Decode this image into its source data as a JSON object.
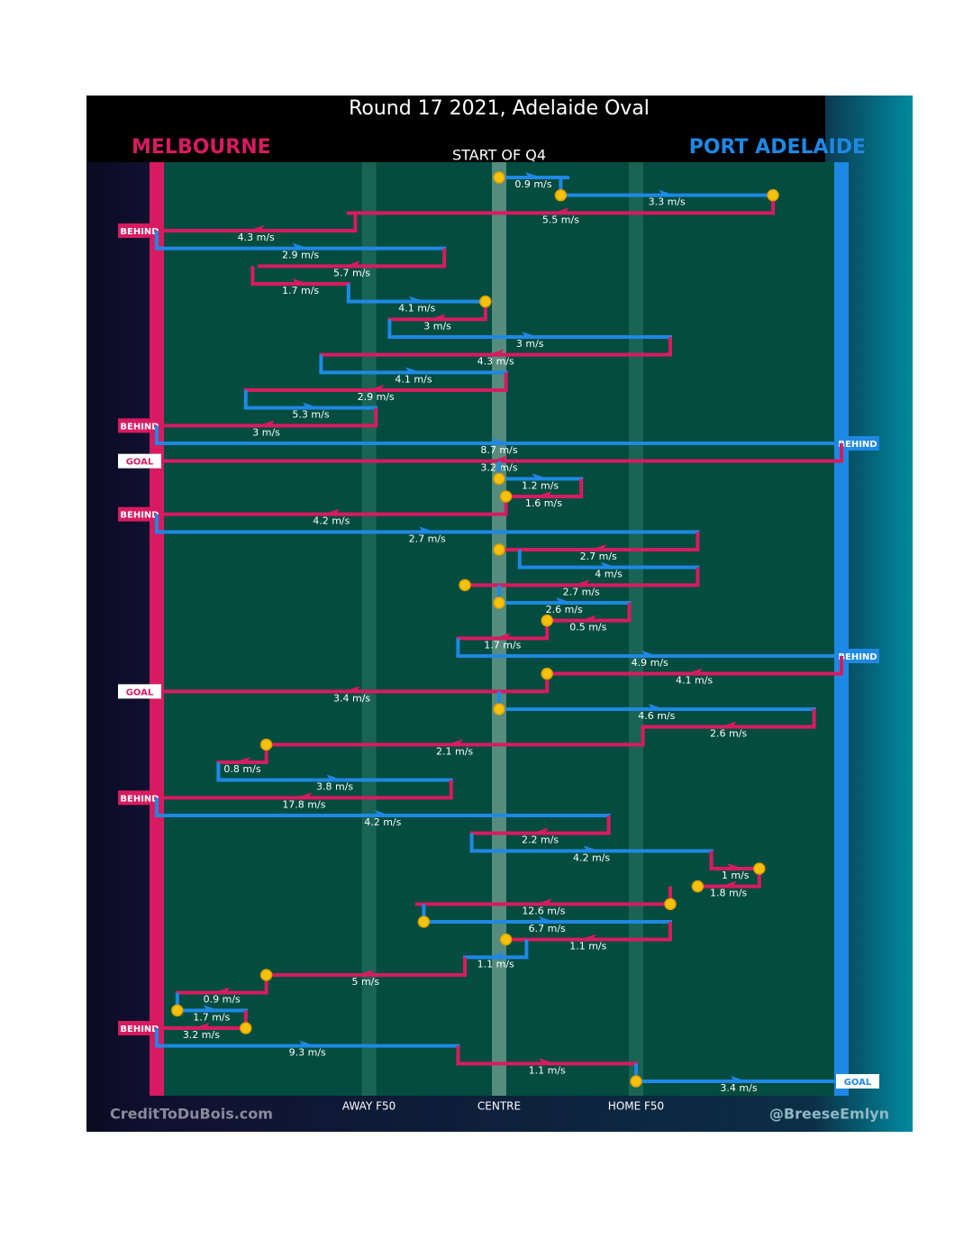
{
  "chart_data": {
    "type": "possession-flow",
    "title": "Round 17 2021, Adelaide Oval",
    "subtitle": "START OF Q4",
    "credit_left": "CreditToDuBois.com",
    "credit_right": "@BreeseEmlyn",
    "series": [
      {
        "name": "MELBOURNE",
        "color": "#d81b60"
      },
      {
        "name": "PORT ADELAIDE",
        "color": "#1e88e5"
      }
    ],
    "xlim": [
      0,
      100
    ],
    "xticks": [
      {
        "value": 31,
        "label": "AWAY F50"
      },
      {
        "value": 50,
        "label": "CENTRE"
      },
      {
        "value": 70,
        "label": "HOME F50"
      }
    ],
    "segments": [
      {
        "team": "PORT ADELAIDE",
        "x": [
          50,
          60
        ],
        "value": 0.9,
        "value_label": "0.9 m/s",
        "dots": [
          "start"
        ]
      },
      {
        "team": "PORT ADELAIDE",
        "x": [
          59,
          90
        ],
        "value": 3.3,
        "value_label": "3.3 m/s",
        "dots": [
          "start",
          "end"
        ]
      },
      {
        "team": "MELBOURNE",
        "x": [
          90,
          28
        ],
        "value": 5.5,
        "value_label": "5.5 m/s"
      },
      {
        "team": "MELBOURNE",
        "x": [
          29,
          0
        ],
        "value": 4.3,
        "value_label": "4.3 m/s",
        "event": "BEHIND"
      },
      {
        "team": "PORT ADELAIDE",
        "x": [
          0,
          42
        ],
        "value": 2.9,
        "value_label": "2.9 m/s"
      },
      {
        "team": "MELBOURNE",
        "x": [
          42,
          15
        ],
        "value": 5.7,
        "value_label": "5.7 m/s"
      },
      {
        "team": "MELBOURNE",
        "x": [
          14,
          28
        ],
        "value": 1.7,
        "value_label": "1.7 m/s"
      },
      {
        "team": "PORT ADELAIDE",
        "x": [
          28,
          48
        ],
        "value": 4.1,
        "value_label": "4.1 m/s",
        "dots": [
          "end"
        ]
      },
      {
        "team": "MELBOURNE",
        "x": [
          48,
          34
        ],
        "value": 3,
        "value_label": "3 m/s"
      },
      {
        "team": "PORT ADELAIDE",
        "x": [
          34,
          75
        ],
        "value": 3,
        "value_label": "3 m/s"
      },
      {
        "team": "MELBOURNE",
        "x": [
          75,
          24
        ],
        "value": 4.3,
        "value_label": "4.3 m/s"
      },
      {
        "team": "PORT ADELAIDE",
        "x": [
          24,
          51
        ],
        "value": 4.1,
        "value_label": "4.1 m/s"
      },
      {
        "team": "MELBOURNE",
        "x": [
          51,
          13
        ],
        "value": 2.9,
        "value_label": "2.9 m/s"
      },
      {
        "team": "PORT ADELAIDE",
        "x": [
          13,
          32
        ],
        "value": 5.3,
        "value_label": "5.3 m/s"
      },
      {
        "team": "MELBOURNE",
        "x": [
          32,
          0
        ],
        "value": 3,
        "value_label": "3 m/s",
        "event": "BEHIND"
      },
      {
        "team": "PORT ADELAIDE",
        "x": [
          0,
          100
        ],
        "value": 8.7,
        "value_label": "8.7 m/s",
        "event": "BEHIND"
      },
      {
        "team": "MELBOURNE",
        "x": [
          100,
          0
        ],
        "value": 3.2,
        "value_label": "3.2 m/s",
        "event": "GOAL"
      },
      {
        "team": "PORT ADELAIDE",
        "x": [
          50,
          62
        ],
        "value": 1.2,
        "value_label": "1.2 m/s",
        "dots": [
          "start"
        ]
      },
      {
        "team": "MELBOURNE",
        "x": [
          62,
          51
        ],
        "value": 1.6,
        "value_label": "1.6 m/s",
        "dots": [
          "end"
        ]
      },
      {
        "team": "MELBOURNE",
        "x": [
          51,
          0
        ],
        "value": 4.2,
        "value_label": "4.2 m/s",
        "event": "BEHIND"
      },
      {
        "team": "PORT ADELAIDE",
        "x": [
          0,
          79
        ],
        "value": 2.7,
        "value_label": "2.7 m/s"
      },
      {
        "team": "MELBOURNE",
        "x": [
          79,
          50
        ],
        "value": 2.7,
        "value_label": "2.7 m/s",
        "dots": [
          "end"
        ]
      },
      {
        "team": "PORT ADELAIDE",
        "x": [
          53,
          79
        ],
        "value": 4,
        "value_label": "4 m/s"
      },
      {
        "team": "MELBOURNE",
        "x": [
          79,
          45
        ],
        "value": 2.7,
        "value_label": "2.7 m/s",
        "dots": [
          "end"
        ]
      },
      {
        "team": "PORT ADELAIDE",
        "x": [
          50,
          69
        ],
        "value": 2.6,
        "value_label": "2.6 m/s",
        "dots": [
          "start"
        ]
      },
      {
        "team": "MELBOURNE",
        "x": [
          69,
          57
        ],
        "value": 0.5,
        "value_label": "0.5 m/s",
        "dots": [
          "end"
        ]
      },
      {
        "team": "MELBOURNE",
        "x": [
          57,
          44
        ],
        "value": 1.7,
        "value_label": "1.7 m/s"
      },
      {
        "team": "PORT ADELAIDE",
        "x": [
          44,
          100
        ],
        "value": 4.9,
        "value_label": "4.9 m/s",
        "event": "BEHIND"
      },
      {
        "team": "MELBOURNE",
        "x": [
          100,
          57
        ],
        "value": 4.1,
        "value_label": "4.1 m/s",
        "dots": [
          "end"
        ]
      },
      {
        "team": "MELBOURNE",
        "x": [
          57,
          0
        ],
        "value": 3.4,
        "value_label": "3.4 m/s",
        "event": "GOAL"
      },
      {
        "team": "PORT ADELAIDE",
        "x": [
          50,
          96
        ],
        "value": 4.6,
        "value_label": "4.6 m/s",
        "dots": [
          "start"
        ]
      },
      {
        "team": "MELBOURNE",
        "x": [
          96,
          71
        ],
        "value": 2.6,
        "value_label": "2.6 m/s"
      },
      {
        "team": "MELBOURNE",
        "x": [
          71,
          16
        ],
        "value": 2.1,
        "value_label": "2.1 m/s",
        "dots": [
          "end"
        ]
      },
      {
        "team": "MELBOURNE",
        "x": [
          16,
          9
        ],
        "value": 0.8,
        "value_label": "0.8 m/s"
      },
      {
        "team": "PORT ADELAIDE",
        "x": [
          9,
          43
        ],
        "value": 3.8,
        "value_label": "3.8 m/s"
      },
      {
        "team": "MELBOURNE",
        "x": [
          43,
          0
        ],
        "value": 17.8,
        "value_label": "17.8 m/s",
        "event": "BEHIND"
      },
      {
        "team": "PORT ADELAIDE",
        "x": [
          0,
          66
        ],
        "value": 4.2,
        "value_label": "4.2 m/s"
      },
      {
        "team": "MELBOURNE",
        "x": [
          66,
          46
        ],
        "value": 2.2,
        "value_label": "2.2 m/s"
      },
      {
        "team": "PORT ADELAIDE",
        "x": [
          46,
          81
        ],
        "value": 4.2,
        "value_label": "4.2 m/s"
      },
      {
        "team": "MELBOURNE",
        "x": [
          81,
          88
        ],
        "value": 1,
        "value_label": "1 m/s",
        "dots": [
          "end"
        ]
      },
      {
        "team": "MELBOURNE",
        "x": [
          88,
          79
        ],
        "value": 1.8,
        "value_label": "1.8 m/s",
        "dots": [
          "end"
        ]
      },
      {
        "team": "MELBOURNE",
        "x": [
          75,
          38
        ],
        "value": 12.6,
        "value_label": "12.6 m/s",
        "dots": [
          "start"
        ]
      },
      {
        "team": "PORT ADELAIDE",
        "x": [
          39,
          75
        ],
        "value": 6.7,
        "value_label": "6.7 m/s",
        "dots": [
          "start"
        ]
      },
      {
        "team": "MELBOURNE",
        "x": [
          75,
          51
        ],
        "value": 1.1,
        "value_label": "1.1 m/s",
        "dots": [
          "end"
        ]
      },
      {
        "team": "PORT ADELAIDE",
        "x": [
          54,
          45
        ],
        "value": 1.1,
        "value_label": "1.1 m/s"
      },
      {
        "team": "MELBOURNE",
        "x": [
          45,
          16
        ],
        "value": 5,
        "value_label": "5 m/s",
        "dots": [
          "end"
        ]
      },
      {
        "team": "MELBOURNE",
        "x": [
          16,
          3
        ],
        "value": 0.9,
        "value_label": "0.9 m/s"
      },
      {
        "team": "PORT ADELAIDE",
        "x": [
          3,
          13
        ],
        "value": 1.7,
        "value_label": "1.7 m/s",
        "dots": [
          "start"
        ]
      },
      {
        "team": "MELBOURNE",
        "x": [
          13,
          0
        ],
        "value": 3.2,
        "value_label": "3.2 m/s",
        "event": "BEHIND",
        "dots": [
          "start"
        ]
      },
      {
        "team": "PORT ADELAIDE",
        "x": [
          0,
          44
        ],
        "value": 9.3,
        "value_label": "9.3 m/s"
      },
      {
        "team": "MELBOURNE",
        "x": [
          44,
          70
        ],
        "value": 1.1,
        "value_label": "1.1 m/s"
      },
      {
        "team": "PORT ADELAIDE",
        "x": [
          70,
          100
        ],
        "value": 3.4,
        "value_label": "3.4 m/s",
        "event": "GOAL",
        "dots": [
          "start"
        ]
      }
    ]
  }
}
